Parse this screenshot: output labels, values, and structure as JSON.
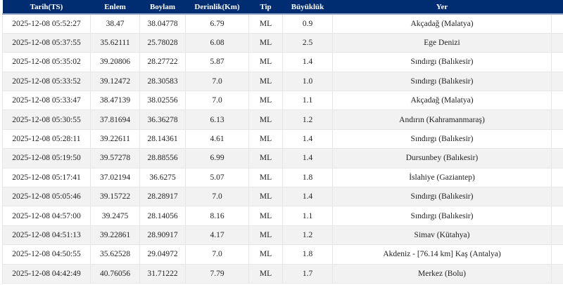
{
  "table": {
    "columns": [
      "Tarih(TS)",
      "Enlem",
      "Boylam",
      "Derinlik(Km)",
      "Tip",
      "Büyüklük",
      "Yer"
    ],
    "column_keys": [
      "tarih-ts",
      "enlem",
      "boylam",
      "derinlik-km",
      "tip",
      "buyukluk",
      "yer"
    ],
    "rows": [
      [
        "2025-12-08 05:52:27",
        "38.47",
        "38.04778",
        "6.79",
        "ML",
        "0.9",
        "Akçadağ (Malatya)"
      ],
      [
        "2025-12-08 05:37:55",
        "35.62111",
        "25.78028",
        "6.08",
        "ML",
        "2.5",
        "Ege Denizi"
      ],
      [
        "2025-12-08 05:35:02",
        "39.20806",
        "28.27722",
        "5.87",
        "ML",
        "1.4",
        "Sındırgı (Balıkesir)"
      ],
      [
        "2025-12-08 05:33:52",
        "39.12472",
        "28.30583",
        "7.0",
        "ML",
        "1.0",
        "Sındırgı (Balıkesir)"
      ],
      [
        "2025-12-08 05:33:47",
        "38.47139",
        "38.02556",
        "7.0",
        "ML",
        "1.1",
        "Akçadağ (Malatya)"
      ],
      [
        "2025-12-08 05:30:55",
        "37.81694",
        "36.36278",
        "6.13",
        "ML",
        "1.2",
        "Andırın (Kahramanmaraş)"
      ],
      [
        "2025-12-08 05:28:11",
        "39.22611",
        "28.14361",
        "4.61",
        "ML",
        "1.4",
        "Sındırgı (Balıkesir)"
      ],
      [
        "2025-12-08 05:19:50",
        "39.57278",
        "28.88556",
        "6.99",
        "ML",
        "1.4",
        "Dursunbey (Balıkesir)"
      ],
      [
        "2025-12-08 05:17:41",
        "37.02194",
        "36.6275",
        "5.07",
        "ML",
        "1.8",
        "İslahiye (Gaziantep)"
      ],
      [
        "2025-12-08 05:05:46",
        "39.15722",
        "28.28917",
        "7.0",
        "ML",
        "1.4",
        "Sındırgı (Balıkesir)"
      ],
      [
        "2025-12-08 04:57:00",
        "39.2475",
        "28.14056",
        "8.16",
        "ML",
        "1.1",
        "Sındırgı (Balıkesir)"
      ],
      [
        "2025-12-08 04:51:13",
        "39.22861",
        "28.90917",
        "4.17",
        "ML",
        "1.2",
        "Simav (Kütahya)"
      ],
      [
        "2025-12-08 04:50:55",
        "35.62528",
        "29.04972",
        "7.0",
        "ML",
        "1.8",
        "Akdeniz - [76.14 km] Kaş (Antalya)"
      ],
      [
        "2025-12-08 04:42:49",
        "40.76056",
        "31.71222",
        "7.79",
        "ML",
        "1.7",
        "Merkez (Bolu)"
      ]
    ]
  },
  "colors": {
    "header_bg": "#002d72",
    "header_text": "#ffffff",
    "stripe": "#f2f2f2",
    "border": "#e6e6e6",
    "accent_line": "#93a7cc",
    "text": "#222222"
  }
}
